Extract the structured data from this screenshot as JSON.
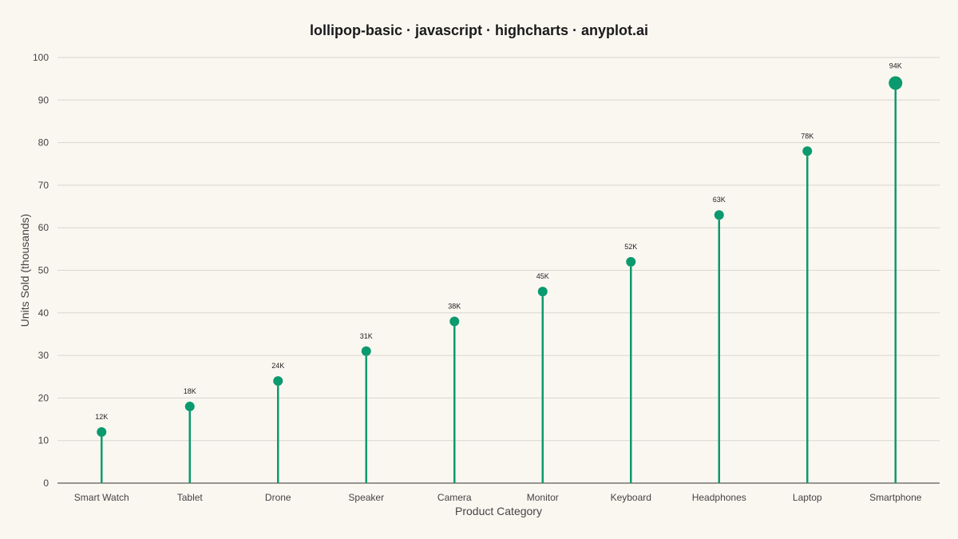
{
  "chart_data": {
    "type": "lollipop",
    "title": "lollipop-basic · javascript · highcharts · anyplot.ai",
    "xlabel": "Product Category",
    "ylabel": "Units Sold (thousands)",
    "ylim": [
      0,
      100
    ],
    "y_ticks": [
      "0",
      "10",
      "20",
      "30",
      "40",
      "50",
      "60",
      "70",
      "80",
      "90",
      "100"
    ],
    "grid": true,
    "legend": "none",
    "categories": [
      "Smart Watch",
      "Tablet",
      "Drone",
      "Speaker",
      "Camera",
      "Monitor",
      "Keyboard",
      "Headphones",
      "Laptop",
      "Smartphone"
    ],
    "values": [
      12,
      18,
      24,
      31,
      38,
      45,
      52,
      63,
      78,
      94
    ],
    "data_labels": [
      "12K",
      "18K",
      "24K",
      "31K",
      "38K",
      "45K",
      "52K",
      "63K",
      "78K",
      "94K"
    ],
    "highlighted_index": 9,
    "colors": {
      "series": "#0b9a6d",
      "background": "#faf7f1",
      "grid": "#d9d6cf"
    }
  }
}
